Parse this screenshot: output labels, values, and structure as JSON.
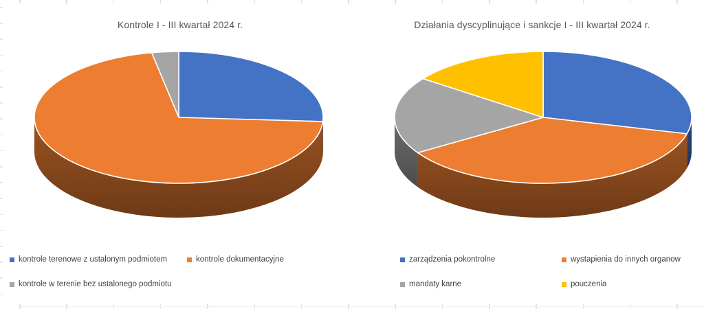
{
  "window": {
    "background": "#FFFFFF"
  },
  "chart_data": [
    {
      "type": "pie",
      "projection": "3d",
      "title": "Kontrole I - III kwartał 2024 r.",
      "labels": [
        "kontrole terenowe z ustalonym podmiotem",
        "kontrole dokumentacyjne",
        "kontrole w terenie bez ustalonego podmiotu"
      ],
      "values": [
        26,
        71,
        3
      ],
      "values_note": "percent, estimated from slice angles (no data labels shown)",
      "colors": [
        "#4472C4",
        "#ED7D31",
        "#A5A5A5"
      ],
      "legend_position": "bottom",
      "title_color": "#595959",
      "legend_text_color": "#404040"
    },
    {
      "type": "pie",
      "projection": "3d",
      "title": "Działania dyscyplinujące i sankcje I - III kwartał 2024 r.",
      "labels": [
        "zarządzenia pokontrolne",
        "wystapienia do innych organow",
        "mandaty karne",
        "pouczenia"
      ],
      "values": [
        29,
        37,
        19,
        15
      ],
      "values_note": "percent, estimated from slice angles (no data labels shown)",
      "colors": [
        "#4472C4",
        "#ED7D31",
        "#A5A5A5",
        "#FFC000"
      ],
      "legend_position": "bottom",
      "title_color": "#595959",
      "legend_text_color": "#404040"
    }
  ]
}
